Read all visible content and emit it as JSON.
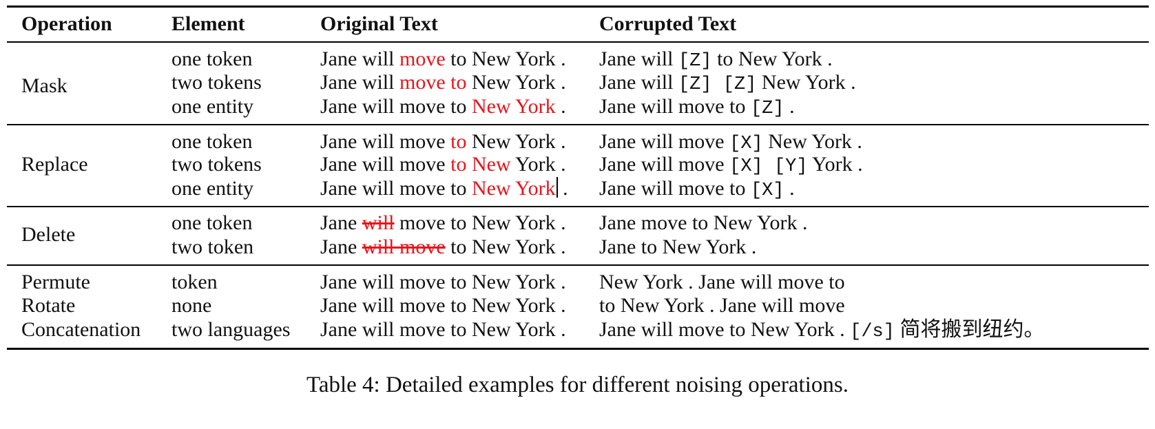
{
  "table": {
    "headers": {
      "operation": "Operation",
      "element": "Element",
      "original": "Original Text",
      "corrupted": "Corrupted Text"
    },
    "groups": [
      {
        "operation": "Mask",
        "rows": [
          {
            "element": "one token",
            "original": [
              {
                "t": "Jane will "
              },
              {
                "t": "move",
                "s": "red"
              },
              {
                "t": " to New York ."
              }
            ],
            "corrupted": [
              {
                "t": "Jane will "
              },
              {
                "t": "[Z]",
                "s": "mono"
              },
              {
                "t": " to New York ."
              }
            ]
          },
          {
            "element": "two tokens",
            "original": [
              {
                "t": "Jane will "
              },
              {
                "t": "move to",
                "s": "red"
              },
              {
                "t": " New York ."
              }
            ],
            "corrupted": [
              {
                "t": "Jane will "
              },
              {
                "t": "[Z] [Z]",
                "s": "mono"
              },
              {
                "t": " New York ."
              }
            ]
          },
          {
            "element": "one entity",
            "original": [
              {
                "t": "Jane will move to "
              },
              {
                "t": "New York",
                "s": "red"
              },
              {
                "t": " ."
              }
            ],
            "corrupted": [
              {
                "t": "Jane will move to "
              },
              {
                "t": "[Z]",
                "s": "mono"
              },
              {
                "t": " ."
              }
            ]
          }
        ]
      },
      {
        "operation": "Replace",
        "rows": [
          {
            "element": "one token",
            "original": [
              {
                "t": "Jane will move "
              },
              {
                "t": "to",
                "s": "red"
              },
              {
                "t": " New York ."
              }
            ],
            "corrupted": [
              {
                "t": "Jane will move "
              },
              {
                "t": "[X]",
                "s": "mono"
              },
              {
                "t": " New York ."
              }
            ]
          },
          {
            "element": "two tokens",
            "original": [
              {
                "t": "Jane will move "
              },
              {
                "t": "to New",
                "s": "red"
              },
              {
                "t": " York ."
              }
            ],
            "corrupted": [
              {
                "t": "Jane will move "
              },
              {
                "t": "[X] [Y]",
                "s": "mono"
              },
              {
                "t": " York ."
              }
            ]
          },
          {
            "element": "one entity",
            "original": [
              {
                "t": "Jane will move to "
              },
              {
                "t": "New York",
                "s": "red"
              },
              {
                "t": "",
                "s": "cursor"
              },
              {
                "t": " ."
              }
            ],
            "corrupted": [
              {
                "t": "Jane will move to "
              },
              {
                "t": "[X]",
                "s": "mono"
              },
              {
                "t": " ."
              }
            ]
          }
        ]
      },
      {
        "operation": "Delete",
        "rows": [
          {
            "element": "one token",
            "original": [
              {
                "t": "Jane "
              },
              {
                "t": "will",
                "s": "strike"
              },
              {
                "t": " move to New York ."
              }
            ],
            "corrupted": [
              {
                "t": "Jane move to New York ."
              }
            ]
          },
          {
            "element": "two token",
            "original": [
              {
                "t": "Jane "
              },
              {
                "t": "will move",
                "s": "strike"
              },
              {
                "t": " to New York ."
              }
            ],
            "corrupted": [
              {
                "t": "Jane to New York ."
              }
            ]
          }
        ]
      },
      {
        "operation": "",
        "rows": [
          {
            "operation": "Permute",
            "element": "token",
            "original": [
              {
                "t": "Jane will move to New York ."
              }
            ],
            "corrupted": [
              {
                "t": "New York . Jane will move to"
              }
            ]
          },
          {
            "operation": "Rotate",
            "element": "none",
            "original": [
              {
                "t": "Jane will move to New York ."
              }
            ],
            "corrupted": [
              {
                "t": "to New York . Jane will move"
              }
            ]
          },
          {
            "operation": "Concatenation",
            "element": "two languages",
            "original": [
              {
                "t": "Jane will move to New York ."
              }
            ],
            "corrupted": [
              {
                "t": "Jane will move to New York . "
              },
              {
                "t": "[/s]",
                "s": "mono"
              },
              {
                "t": " 简将搬到纽约。"
              }
            ]
          }
        ]
      }
    ]
  },
  "caption": "Table 4: Detailed examples for different noising operations."
}
